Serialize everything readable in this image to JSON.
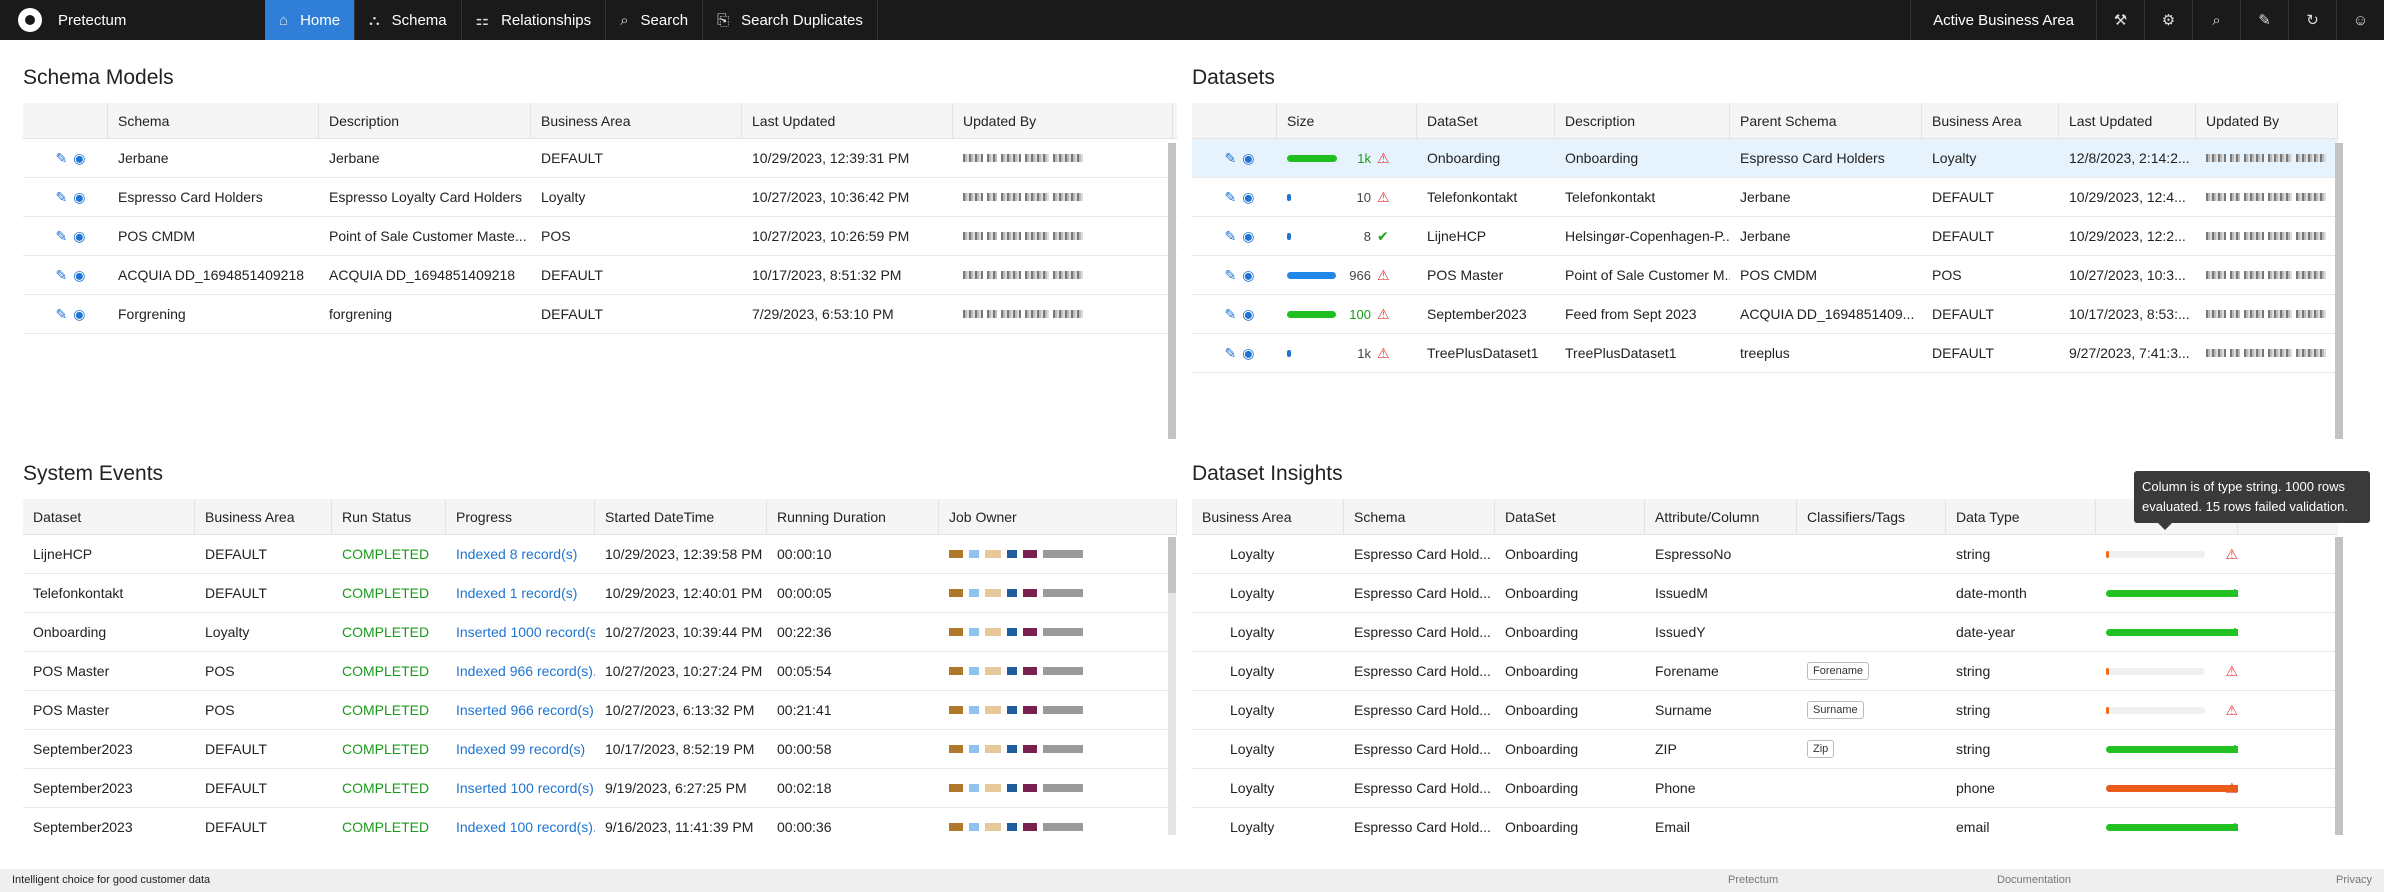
{
  "nav": {
    "brand": "Pretectum",
    "items": [
      {
        "label": "Home",
        "icon": "home-icon",
        "glyph": "⌂",
        "active": true
      },
      {
        "label": "Schema",
        "icon": "schema-icon",
        "glyph": "⛬"
      },
      {
        "label": "Relationships",
        "icon": "relationships-icon",
        "glyph": "⚏"
      },
      {
        "label": "Search",
        "icon": "search-icon",
        "glyph": "⌕"
      },
      {
        "label": "Search Duplicates",
        "icon": "duplicates-icon",
        "glyph": "⎘"
      }
    ],
    "area_label": "Active Business Area",
    "right_icons": [
      "wand-icon",
      "gear-icon",
      "zoom-icon",
      "tools-icon",
      "refresh-icon",
      "user-icon"
    ]
  },
  "schema_models": {
    "title": "Schema Models",
    "columns": [
      "",
      "Schema",
      "Description",
      "Business Area",
      "Last Updated",
      "Updated By"
    ],
    "rows": [
      {
        "schema": "Jerbane",
        "description": "Jerbane",
        "area": "DEFAULT",
        "updated": "10/29/2023, 12:39:31 PM"
      },
      {
        "schema": "Espresso Card Holders",
        "description": "Espresso Loyalty Card Holders",
        "area": "Loyalty",
        "updated": "10/27/2023, 10:36:42 PM"
      },
      {
        "schema": "POS CMDM",
        "description": "Point of Sale Customer Maste...",
        "area": "POS",
        "updated": "10/27/2023, 10:26:59 PM"
      },
      {
        "schema": "ACQUIA DD_1694851409218",
        "description": "ACQUIA DD_1694851409218",
        "area": "DEFAULT",
        "updated": "10/17/2023, 8:51:32 PM"
      },
      {
        "schema": "Forgrening",
        "description": "forgrening",
        "area": "DEFAULT",
        "updated": "7/29/2023, 6:53:10 PM"
      }
    ]
  },
  "datasets": {
    "title": "Datasets",
    "columns": [
      "",
      "Size",
      "DataSet",
      "Description",
      "Parent Schema",
      "Business Area",
      "Last Updated",
      "Updated By"
    ],
    "rows": [
      {
        "size": "1k",
        "fill": 0.92,
        "bar_color": "#1fbf1f",
        "count_class": "cnt-green",
        "status": "warn",
        "dataset": "Onboarding",
        "description": "Onboarding",
        "parent": "Espresso Card Holders",
        "area": "Loyalty",
        "updated": "12/8/2023, 2:14:2...",
        "selected": true
      },
      {
        "size": "10",
        "fill": 0.05,
        "bar_color": "#1f74d1",
        "count_class": "cnt-grey",
        "status": "warn",
        "dataset": "Telefonkontakt",
        "description": "Telefonkontakt",
        "parent": "Jerbane",
        "area": "DEFAULT",
        "updated": "10/29/2023, 12:4..."
      },
      {
        "size": "8",
        "fill": 0.05,
        "bar_color": "#1f74d1",
        "count_class": "cnt-grey",
        "status": "ok",
        "dataset": "LijneHCP",
        "description": "Helsingør-Copenhagen-P...",
        "parent": "Jerbane",
        "area": "DEFAULT",
        "updated": "10/29/2023, 12:2..."
      },
      {
        "size": "966",
        "fill": 0.9,
        "bar_color": "#1f88e8",
        "count_class": "cnt-grey",
        "status": "warn",
        "dataset": "POS Master",
        "description": "Point of Sale Customer M...",
        "parent": "POS CMDM",
        "area": "POS",
        "updated": "10/27/2023, 10:3..."
      },
      {
        "size": "100",
        "fill": 0.9,
        "bar_color": "#1fbf1f",
        "count_class": "cnt-green",
        "status": "warn",
        "dataset": "September2023",
        "description": "Feed from Sept 2023",
        "parent": "ACQUIA DD_1694851409...",
        "area": "DEFAULT",
        "updated": "10/17/2023, 8:53:..."
      },
      {
        "size": "1k",
        "fill": 0.05,
        "bar_color": "#1f74d1",
        "count_class": "cnt-grey",
        "status": "warn",
        "dataset": "TreePlusDataset1",
        "description": "TreePlusDataset1",
        "parent": "treeplus",
        "area": "DEFAULT",
        "updated": "9/27/2023, 7:41:3..."
      }
    ]
  },
  "system_events": {
    "title": "System Events",
    "columns": [
      "Dataset",
      "Business Area",
      "Run Status",
      "Progress",
      "Started DateTime",
      "Running Duration",
      "Job Owner"
    ],
    "rows": [
      {
        "dataset": "LijneHCP",
        "area": "DEFAULT",
        "status": "COMPLETED",
        "progress": "Indexed 8 record(s)",
        "started": "10/29/2023, 12:39:58 PM",
        "duration": "00:00:10"
      },
      {
        "dataset": "Telefonkontakt",
        "area": "DEFAULT",
        "status": "COMPLETED",
        "progress": "Indexed 1 record(s)",
        "started": "10/29/2023, 12:40:01 PM",
        "duration": "00:00:05"
      },
      {
        "dataset": "Onboarding",
        "area": "Loyalty",
        "status": "COMPLETED",
        "progress": "Inserted 1000 record(s)",
        "started": "10/27/2023, 10:39:44 PM",
        "duration": "00:22:36"
      },
      {
        "dataset": "POS Master",
        "area": "POS",
        "status": "COMPLETED",
        "progress": "Indexed 966 record(s)...",
        "started": "10/27/2023, 10:27:24 PM",
        "duration": "00:05:54"
      },
      {
        "dataset": "POS Master",
        "area": "POS",
        "status": "COMPLETED",
        "progress": "Inserted 966 record(s)...",
        "started": "10/27/2023, 6:13:32 PM",
        "duration": "00:21:41"
      },
      {
        "dataset": "September2023",
        "area": "DEFAULT",
        "status": "COMPLETED",
        "progress": "Indexed 99 record(s)",
        "started": "10/17/2023, 8:52:19 PM",
        "duration": "00:00:58"
      },
      {
        "dataset": "September2023",
        "area": "DEFAULT",
        "status": "COMPLETED",
        "progress": "Inserted 100 record(s)...",
        "started": "9/19/2023, 6:27:25 PM",
        "duration": "00:02:18"
      },
      {
        "dataset": "September2023",
        "area": "DEFAULT",
        "status": "COMPLETED",
        "progress": "Indexed 100 record(s)...",
        "started": "9/16/2023, 11:41:39 PM",
        "duration": "00:00:36"
      }
    ]
  },
  "dataset_insights": {
    "title": "Dataset Insights",
    "columns": [
      "Business Area",
      "Schema",
      "DataSet",
      "Attribute/Column",
      "Classifiers/Tags",
      "Data Type",
      ""
    ],
    "rows": [
      {
        "area": "Loyalty",
        "schema": "Espresso Card Hold...",
        "dataset": "Onboarding",
        "attribute": "EspressoNo",
        "tag": "",
        "type": "string",
        "fill": 0.015,
        "bar_color": "#f06a1a",
        "status": "warn"
      },
      {
        "area": "Loyalty",
        "schema": "Espresso Card Hold...",
        "dataset": "Onboarding",
        "attribute": "IssuedM",
        "tag": "",
        "type": "date-month",
        "fill": 1.0,
        "bar_color": "#22c222",
        "status": "ok"
      },
      {
        "area": "Loyalty",
        "schema": "Espresso Card Hold...",
        "dataset": "Onboarding",
        "attribute": "IssuedY",
        "tag": "",
        "type": "date-year",
        "fill": 1.0,
        "bar_color": "#22c222",
        "status": "ok"
      },
      {
        "area": "Loyalty",
        "schema": "Espresso Card Hold...",
        "dataset": "Onboarding",
        "attribute": "Forename",
        "tag": "Forename",
        "type": "string",
        "fill": 0.015,
        "bar_color": "#f06a1a",
        "status": "warn"
      },
      {
        "area": "Loyalty",
        "schema": "Espresso Card Hold...",
        "dataset": "Onboarding",
        "attribute": "Surname",
        "tag": "Surname",
        "type": "string",
        "fill": 0.015,
        "bar_color": "#f06a1a",
        "status": "warn"
      },
      {
        "area": "Loyalty",
        "schema": "Espresso Card Hold...",
        "dataset": "Onboarding",
        "attribute": "ZIP",
        "tag": "Zip",
        "type": "string",
        "fill": 1.0,
        "bar_color": "#22c222",
        "status": "ok"
      },
      {
        "area": "Loyalty",
        "schema": "Espresso Card Hold...",
        "dataset": "Onboarding",
        "attribute": "Phone",
        "tag": "",
        "type": "phone",
        "fill": 1.0,
        "bar_color": "#ea5a1a",
        "status": "warn"
      },
      {
        "area": "Loyalty",
        "schema": "Espresso Card Hold...",
        "dataset": "Onboarding",
        "attribute": "Email",
        "tag": "",
        "type": "email",
        "fill": 1.0,
        "bar_color": "#22c222",
        "status": "ok"
      }
    ],
    "tooltip": "Column is of type string. 1000 rows evaluated. 15 rows failed validation."
  },
  "footer": {
    "tagline": "Intelligent choice for good customer data",
    "links": [
      "Pretectum",
      "Documentation",
      "Privacy"
    ]
  }
}
